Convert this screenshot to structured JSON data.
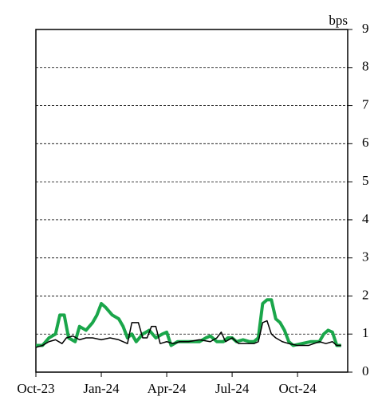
{
  "chart_data": {
    "type": "line",
    "y_axis_label": "bps",
    "xlim": [
      0,
      14.3
    ],
    "xticks": [
      {
        "value": 0,
        "label": "Oct-23"
      },
      {
        "value": 3,
        "label": "Jan-24"
      },
      {
        "value": 6,
        "label": "Apr-24"
      },
      {
        "value": 9,
        "label": "Jul-24"
      },
      {
        "value": 12,
        "label": "Oct-24"
      }
    ],
    "ylim": [
      0,
      9
    ],
    "yticks": [
      0,
      1,
      2,
      3,
      4,
      5,
      6,
      7,
      8,
      9
    ],
    "grid": true,
    "series": [
      {
        "color": "#1aa64a",
        "width": 4,
        "x": [
          0,
          0.3,
          0.6,
          0.9,
          1.1,
          1.3,
          1.5,
          1.8,
          2.0,
          2.3,
          2.6,
          2.8,
          3.0,
          3.2,
          3.5,
          3.8,
          4.0,
          4.2,
          4.4,
          4.6,
          4.9,
          5.2,
          5.5,
          5.8,
          6.0,
          6.2,
          6.5,
          7.0,
          7.5,
          7.8,
          8.0,
          8.3,
          8.6,
          8.8,
          9.0,
          9.2,
          9.5,
          9.8,
          10.0,
          10.2,
          10.4,
          10.6,
          10.8,
          11.0,
          11.2,
          11.4,
          11.6,
          11.8,
          12.2,
          12.6,
          13.0,
          13.2,
          13.4,
          13.6,
          13.8,
          14.0
        ],
        "values": [
          0.7,
          0.7,
          0.9,
          1.0,
          1.5,
          1.5,
          0.9,
          0.8,
          1.2,
          1.1,
          1.3,
          1.5,
          1.8,
          1.7,
          1.5,
          1.4,
          1.2,
          0.9,
          1.0,
          0.8,
          1.0,
          1.1,
          0.9,
          1.0,
          1.05,
          0.7,
          0.8,
          0.8,
          0.8,
          0.9,
          0.95,
          0.8,
          0.8,
          0.9,
          0.9,
          0.8,
          0.85,
          0.8,
          0.8,
          0.9,
          1.8,
          1.9,
          1.9,
          1.4,
          1.3,
          1.1,
          0.8,
          0.7,
          0.75,
          0.8,
          0.8,
          1.0,
          1.1,
          1.05,
          0.7,
          0.7
        ]
      },
      {
        "color": "#000000",
        "width": 1.5,
        "x": [
          0,
          0.3,
          0.6,
          0.9,
          1.2,
          1.4,
          1.7,
          2.0,
          2.3,
          2.6,
          3.0,
          3.4,
          3.8,
          4.0,
          4.2,
          4.4,
          4.7,
          4.9,
          5.1,
          5.3,
          5.5,
          5.7,
          6.0,
          6.3,
          6.6,
          7.0,
          7.5,
          8.0,
          8.3,
          8.5,
          8.7,
          9.0,
          9.3,
          9.6,
          10.0,
          10.2,
          10.4,
          10.6,
          10.8,
          11.0,
          11.3,
          11.6,
          12.0,
          12.5,
          13.0,
          13.3,
          13.6,
          13.8,
          14.0
        ],
        "values": [
          0.65,
          0.7,
          0.8,
          0.85,
          0.75,
          0.9,
          0.95,
          0.85,
          0.9,
          0.9,
          0.85,
          0.9,
          0.85,
          0.8,
          0.75,
          1.3,
          1.3,
          0.9,
          0.9,
          1.2,
          1.2,
          0.75,
          0.8,
          0.75,
          0.8,
          0.8,
          0.85,
          0.8,
          0.9,
          1.05,
          0.8,
          0.9,
          0.75,
          0.75,
          0.75,
          0.8,
          1.3,
          1.35,
          1.0,
          0.9,
          0.8,
          0.75,
          0.7,
          0.7,
          0.8,
          0.75,
          0.8,
          0.7,
          0.7
        ]
      }
    ]
  }
}
